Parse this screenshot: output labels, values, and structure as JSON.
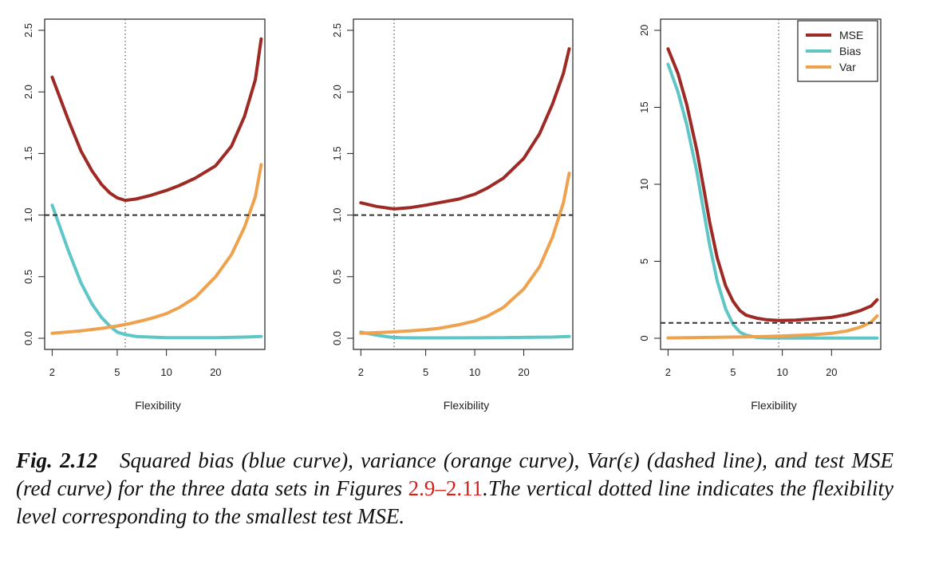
{
  "chart_data": [
    {
      "type": "line",
      "xlabel": "Flexibility",
      "ylabel": "",
      "xscale": "log",
      "xlim": [
        1.8,
        40
      ],
      "ylim": [
        0,
        2.5
      ],
      "xticks": [
        2,
        5,
        10,
        20
      ],
      "yticks": [
        0.0,
        0.5,
        1.0,
        1.5,
        2.0,
        2.5
      ],
      "xtick_labels": [
        "2",
        "5",
        "10",
        "20"
      ],
      "ytick_labels": [
        "0.0",
        "0.5",
        "1.0",
        "1.5",
        "2.0",
        "2.5"
      ],
      "hline": 1.0,
      "vline": 5.6,
      "series": [
        {
          "key": "mse",
          "color": "#9e2a25",
          "x": [
            2,
            2.5,
            3,
            3.5,
            4,
            4.5,
            5,
            5.6,
            6.5,
            8,
            10,
            12,
            15,
            20,
            25,
            30,
            35,
            38
          ],
          "y": [
            2.12,
            1.78,
            1.52,
            1.36,
            1.25,
            1.18,
            1.14,
            1.12,
            1.13,
            1.16,
            1.2,
            1.24,
            1.3,
            1.4,
            1.56,
            1.8,
            2.1,
            2.43
          ]
        },
        {
          "key": "bias",
          "color": "#5ec6c6",
          "x": [
            2,
            2.5,
            3,
            3.5,
            4,
            4.5,
            5,
            5.6,
            6.5,
            8,
            10,
            15,
            20,
            30,
            38
          ],
          "y": [
            1.08,
            0.72,
            0.45,
            0.28,
            0.17,
            0.1,
            0.05,
            0.03,
            0.015,
            0.01,
            0.005,
            0.005,
            0.005,
            0.01,
            0.015
          ]
        },
        {
          "key": "var",
          "color": "#eea24e",
          "x": [
            2,
            3,
            4,
            5,
            6,
            8,
            10,
            12,
            15,
            20,
            25,
            30,
            35,
            38
          ],
          "y": [
            0.04,
            0.06,
            0.08,
            0.1,
            0.12,
            0.16,
            0.2,
            0.25,
            0.33,
            0.5,
            0.68,
            0.9,
            1.15,
            1.41
          ]
        }
      ]
    },
    {
      "type": "line",
      "xlabel": "Flexibility",
      "ylabel": "",
      "xscale": "log",
      "xlim": [
        1.8,
        40
      ],
      "ylim": [
        0,
        2.5
      ],
      "xticks": [
        2,
        5,
        10,
        20
      ],
      "yticks": [
        0.0,
        0.5,
        1.0,
        1.5,
        2.0,
        2.5
      ],
      "xtick_labels": [
        "2",
        "5",
        "10",
        "20"
      ],
      "ytick_labels": [
        "0.0",
        "0.5",
        "1.0",
        "1.5",
        "2.0",
        "2.5"
      ],
      "hline": 1.0,
      "vline": 3.2,
      "series": [
        {
          "key": "mse",
          "color": "#9e2a25",
          "x": [
            2,
            2.5,
            3,
            3.2,
            4,
            5,
            6,
            8,
            10,
            12,
            15,
            20,
            25,
            30,
            35,
            38
          ],
          "y": [
            1.1,
            1.07,
            1.055,
            1.05,
            1.06,
            1.08,
            1.1,
            1.13,
            1.17,
            1.22,
            1.3,
            1.46,
            1.66,
            1.9,
            2.15,
            2.35
          ]
        },
        {
          "key": "bias",
          "color": "#5ec6c6",
          "x": [
            2,
            2.5,
            3,
            3.5,
            4,
            5,
            7,
            10,
            15,
            20,
            30,
            38
          ],
          "y": [
            0.05,
            0.025,
            0.01,
            0.005,
            0.003,
            0.003,
            0.003,
            0.004,
            0.005,
            0.007,
            0.01,
            0.015
          ]
        },
        {
          "key": "var",
          "color": "#eea24e",
          "x": [
            2,
            3,
            4,
            5,
            6,
            8,
            10,
            12,
            15,
            20,
            25,
            30,
            35,
            38
          ],
          "y": [
            0.04,
            0.05,
            0.06,
            0.07,
            0.08,
            0.11,
            0.14,
            0.18,
            0.25,
            0.4,
            0.58,
            0.82,
            1.1,
            1.34
          ]
        }
      ]
    },
    {
      "type": "line",
      "xlabel": "Flexibility",
      "ylabel": "",
      "xscale": "log",
      "xlim": [
        1.8,
        40
      ],
      "ylim": [
        0,
        20
      ],
      "xticks": [
        2,
        5,
        10,
        20
      ],
      "yticks": [
        0,
        5,
        10,
        15,
        20
      ],
      "xtick_labels": [
        "2",
        "5",
        "10",
        "20"
      ],
      "ytick_labels": [
        "0",
        "5",
        "10",
        "15",
        "20"
      ],
      "hline": 1.0,
      "vline": 9.5,
      "legend": {
        "position": "top-right",
        "entries": [
          "MSE",
          "Bias",
          "Var"
        ]
      },
      "series": [
        {
          "key": "mse",
          "name": "MSE",
          "color": "#9e2a25",
          "x": [
            2,
            2.3,
            2.6,
            3,
            3.3,
            3.6,
            4,
            4.5,
            5,
            5.5,
            6,
            7,
            8,
            9.5,
            12,
            15,
            20,
            25,
            30,
            35,
            38
          ],
          "y": [
            18.8,
            17.2,
            15.2,
            12.2,
            9.8,
            7.5,
            5.2,
            3.4,
            2.4,
            1.8,
            1.5,
            1.3,
            1.2,
            1.15,
            1.18,
            1.25,
            1.35,
            1.55,
            1.8,
            2.1,
            2.5
          ]
        },
        {
          "key": "bias",
          "name": "Bias",
          "color": "#5ec6c6",
          "x": [
            2,
            2.3,
            2.6,
            3,
            3.3,
            3.6,
            4,
            4.5,
            5,
            5.5,
            6,
            7,
            8,
            10,
            15,
            20,
            30,
            38
          ],
          "y": [
            17.8,
            16.0,
            13.9,
            10.8,
            8.3,
            6.0,
            3.7,
            1.9,
            0.9,
            0.4,
            0.2,
            0.05,
            0.02,
            0.01,
            0.01,
            0.01,
            0.01,
            0.01
          ]
        },
        {
          "key": "var",
          "name": "Var",
          "color": "#eea24e",
          "x": [
            2,
            4,
            6,
            8,
            10,
            15,
            20,
            25,
            30,
            35,
            38
          ],
          "y": [
            0.02,
            0.06,
            0.09,
            0.12,
            0.15,
            0.22,
            0.32,
            0.48,
            0.72,
            1.05,
            1.45
          ]
        }
      ]
    }
  ],
  "caption": {
    "label": "Fig. 2.12",
    "text_before_ref": "Squared bias (blue curve), variance (orange curve), Var(ε) (dashed line), and test MSE (red curve) for the three data sets in Figures ",
    "ref": "2.9–2.11",
    "text_after_ref": ".The vertical dotted line indicates the flexibility level corresponding to the smallest test MSE."
  }
}
